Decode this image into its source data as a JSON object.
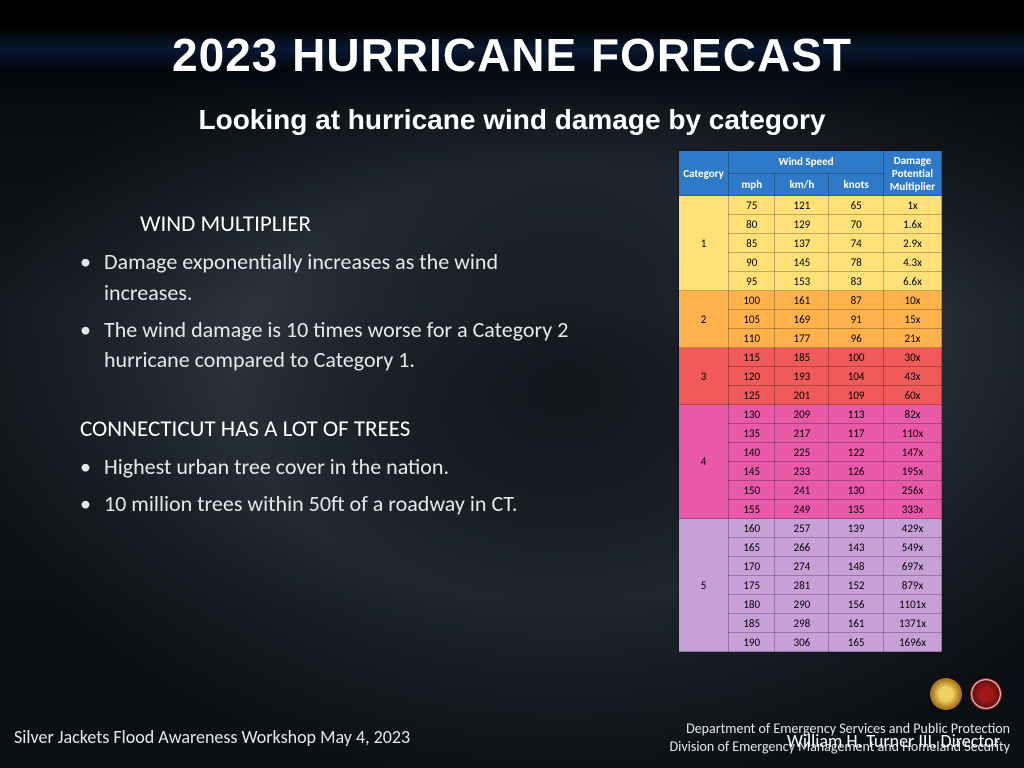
{
  "title": "2023 HURRICANE FORECAST",
  "subtitle": "Looking at hurricane wind damage by category",
  "section1": {
    "heading": "WIND MULTIPLIER",
    "bullets": [
      "Damage exponentially increases as the wind increases.",
      "The wind damage is 10 times worse for a Category 2 hurricane compared to Category 1."
    ]
  },
  "section2": {
    "heading": "CONNECTICUT HAS A LOT OF TREES",
    "bullets": [
      "Highest urban tree cover in the nation.",
      "10 million trees within 50ft of a roadway in CT."
    ]
  },
  "table": {
    "header_bg": "#2f7ac8",
    "cols": {
      "category": "Category",
      "wind_speed": "Wind Speed",
      "mph": "mph",
      "kmh": "km/h",
      "knots": "knots",
      "damage": "Damage Potential Multiplier"
    },
    "groups": [
      {
        "cat": "1",
        "color": "#ffe177",
        "rows": [
          {
            "mph": "75",
            "kmh": "121",
            "kn": "65",
            "dmg": "1x"
          },
          {
            "mph": "80",
            "kmh": "129",
            "kn": "70",
            "dmg": "1.6x"
          },
          {
            "mph": "85",
            "kmh": "137",
            "kn": "74",
            "dmg": "2.9x"
          },
          {
            "mph": "90",
            "kmh": "145",
            "kn": "78",
            "dmg": "4.3x"
          },
          {
            "mph": "95",
            "kmh": "153",
            "kn": "83",
            "dmg": "6.6x"
          }
        ]
      },
      {
        "cat": "2",
        "color": "#ffb24c",
        "rows": [
          {
            "mph": "100",
            "kmh": "161",
            "kn": "87",
            "dmg": "10x"
          },
          {
            "mph": "105",
            "kmh": "169",
            "kn": "91",
            "dmg": "15x"
          },
          {
            "mph": "110",
            "kmh": "177",
            "kn": "96",
            "dmg": "21x"
          }
        ]
      },
      {
        "cat": "3",
        "color": "#f05a5a",
        "rows": [
          {
            "mph": "115",
            "kmh": "185",
            "kn": "100",
            "dmg": "30x"
          },
          {
            "mph": "120",
            "kmh": "193",
            "kn": "104",
            "dmg": "43x"
          },
          {
            "mph": "125",
            "kmh": "201",
            "kn": "109",
            "dmg": "60x"
          }
        ]
      },
      {
        "cat": "4",
        "color": "#e85aa8",
        "rows": [
          {
            "mph": "130",
            "kmh": "209",
            "kn": "113",
            "dmg": "82x"
          },
          {
            "mph": "135",
            "kmh": "217",
            "kn": "117",
            "dmg": "110x"
          },
          {
            "mph": "140",
            "kmh": "225",
            "kn": "122",
            "dmg": "147x"
          },
          {
            "mph": "145",
            "kmh": "233",
            "kn": "126",
            "dmg": "195x"
          },
          {
            "mph": "150",
            "kmh": "241",
            "kn": "130",
            "dmg": "256x"
          },
          {
            "mph": "155",
            "kmh": "249",
            "kn": "135",
            "dmg": "333x"
          }
        ]
      },
      {
        "cat": "5",
        "color": "#c8a0d8",
        "rows": [
          {
            "mph": "160",
            "kmh": "257",
            "kn": "139",
            "dmg": "429x"
          },
          {
            "mph": "165",
            "kmh": "266",
            "kn": "143",
            "dmg": "549x"
          },
          {
            "mph": "170",
            "kmh": "274",
            "kn": "148",
            "dmg": "697x"
          },
          {
            "mph": "175",
            "kmh": "281",
            "kn": "152",
            "dmg": "879x"
          },
          {
            "mph": "180",
            "kmh": "290",
            "kn": "156",
            "dmg": "1101x"
          },
          {
            "mph": "185",
            "kmh": "298",
            "kn": "161",
            "dmg": "1371x"
          },
          {
            "mph": "190",
            "kmh": "306",
            "kn": "165",
            "dmg": "1696x"
          }
        ]
      }
    ]
  },
  "footer": {
    "left": "Silver Jackets Flood Awareness Workshop May 4, 2023",
    "dept": "Department of Emergency Services and Public Protection",
    "div": "Division of Emergency Management and Homeland Security",
    "director": "William H. Turner III, Director"
  }
}
